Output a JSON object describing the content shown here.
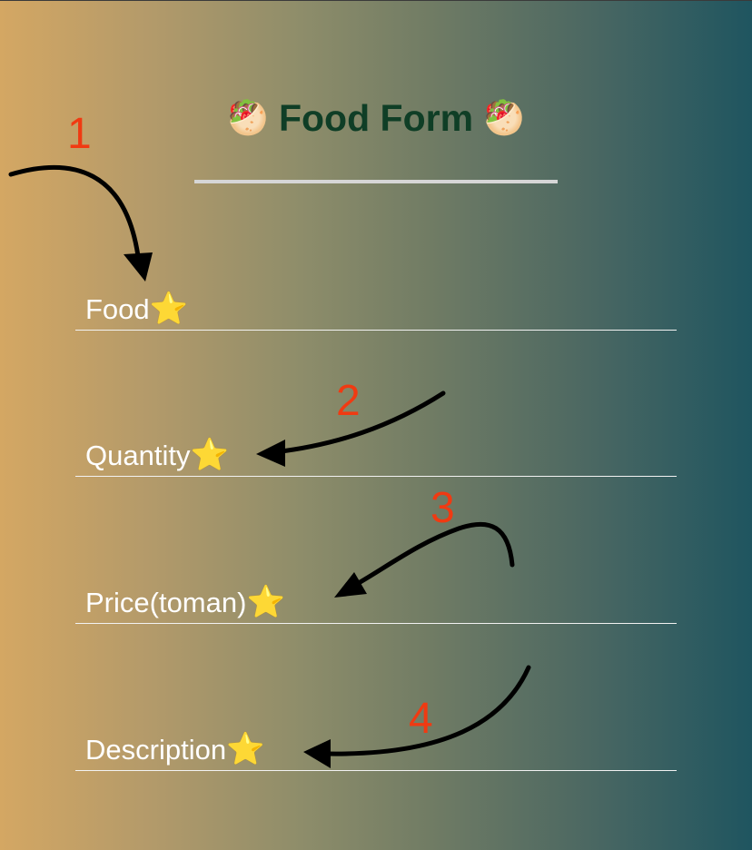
{
  "header": {
    "title": "Food Form",
    "emoji": "🥙"
  },
  "fields": [
    {
      "label": "Food",
      "required_mark": "⭐"
    },
    {
      "label": "Quantity",
      "required_mark": "⭐"
    },
    {
      "label": "Price(toman)",
      "required_mark": "⭐"
    },
    {
      "label": "Description",
      "required_mark": "⭐"
    }
  ],
  "annotations": [
    "1",
    "2",
    "3",
    "4"
  ],
  "colors": {
    "title": "#0f3e26",
    "annotation": "#f03a12",
    "label": "#ffffff",
    "underline": "#f2f2f2"
  }
}
